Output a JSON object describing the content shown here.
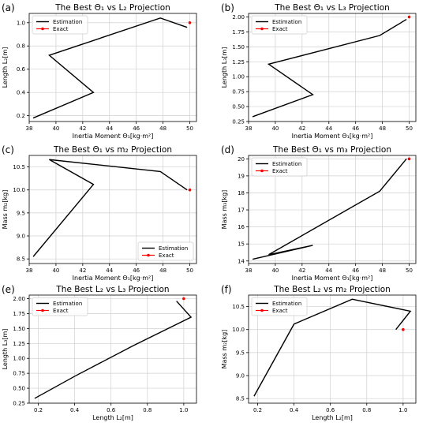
{
  "colors": {
    "estimation": "#000000",
    "exact": "#ff0000",
    "grid": "#d0d0d0"
  },
  "chart_data": [
    {
      "panel": "(a)",
      "type": "line",
      "title": "The Best Θ₁ vs L₂ Projection",
      "xlabel": "Inertia Moment Θ₁[kg·m²]",
      "ylabel": "Length L₂[m]",
      "xlim": [
        38,
        50.5
      ],
      "ylim": [
        0.15,
        1.08
      ],
      "xticks": [
        38,
        40,
        42,
        44,
        46,
        48,
        50
      ],
      "yticks": [
        0.2,
        0.4,
        0.6,
        0.8,
        1.0
      ],
      "xtick_labels": [
        "38",
        "40",
        "42",
        "44",
        "46",
        "48",
        "50"
      ],
      "ytick_labels": [
        "0.2",
        "0.4",
        "0.6",
        "0.8",
        "1.0"
      ],
      "legend": {
        "position": "top-left",
        "entries": [
          "Estimation",
          "Exact"
        ]
      },
      "series": [
        {
          "name": "Estimation",
          "x": [
            38.3,
            42.8,
            39.5,
            47.8,
            49.8
          ],
          "y": [
            0.18,
            0.4,
            0.72,
            1.04,
            0.96
          ]
        },
        {
          "name": "Exact",
          "marker": "point",
          "x": [
            50.0
          ],
          "y": [
            1.0
          ]
        }
      ]
    },
    {
      "panel": "(b)",
      "type": "line",
      "title": "The Best Θ₁ vs L₃ Projection",
      "xlabel": "Inertia Moment Θ₁[kg·m²]",
      "ylabel": "Length L₃[m]",
      "xlim": [
        38,
        50.5
      ],
      "ylim": [
        0.25,
        2.06
      ],
      "xticks": [
        38,
        40,
        42,
        44,
        46,
        48,
        50
      ],
      "yticks": [
        0.25,
        0.5,
        0.75,
        1.0,
        1.25,
        1.5,
        1.75,
        2.0
      ],
      "xtick_labels": [
        "38",
        "40",
        "42",
        "44",
        "46",
        "48",
        "50"
      ],
      "ytick_labels": [
        "0.25",
        "0.50",
        "0.75",
        "1.00",
        "1.25",
        "1.50",
        "1.75",
        "2.00"
      ],
      "legend": {
        "position": "top-left",
        "entries": [
          "Estimation",
          "Exact"
        ]
      },
      "series": [
        {
          "name": "Estimation",
          "x": [
            38.3,
            42.8,
            39.5,
            47.8,
            49.8
          ],
          "y": [
            0.33,
            0.7,
            1.21,
            1.69,
            1.96
          ]
        },
        {
          "name": "Exact",
          "marker": "point",
          "x": [
            50.0
          ],
          "y": [
            2.0
          ]
        }
      ]
    },
    {
      "panel": "(c)",
      "type": "line",
      "title": "The Best Θ₁ vs m₂ Projection",
      "xlabel": "Inertia Moment Θ₁[kg·m²]",
      "ylabel": "Mass m₂[kg]",
      "xlim": [
        38,
        50.5
      ],
      "ylim": [
        8.4,
        10.75
      ],
      "xticks": [
        38,
        40,
        42,
        44,
        46,
        48,
        50
      ],
      "yticks": [
        8.5,
        9.0,
        9.5,
        10.0,
        10.5
      ],
      "xtick_labels": [
        "38",
        "40",
        "42",
        "44",
        "46",
        "48",
        "50"
      ],
      "ytick_labels": [
        "8.5",
        "9.0",
        "9.5",
        "10.0",
        "10.5"
      ],
      "legend": {
        "position": "bottom-right",
        "entries": [
          "Estimation",
          "Exact"
        ]
      },
      "series": [
        {
          "name": "Estimation",
          "x": [
            38.3,
            42.8,
            39.5,
            47.8,
            49.8
          ],
          "y": [
            8.55,
            10.12,
            10.66,
            10.4,
            10.0
          ]
        },
        {
          "name": "Exact",
          "marker": "point",
          "x": [
            50.0
          ],
          "y": [
            10.0
          ]
        }
      ]
    },
    {
      "panel": "(d)",
      "type": "line",
      "title": "The Best Θ₁ vs m₃ Projection",
      "xlabel": "Inertia Moment Θ₁[kg·m²]",
      "ylabel": "Mass m₃[kg]",
      "xlim": [
        38,
        50.5
      ],
      "ylim": [
        13.85,
        20.2
      ],
      "xticks": [
        38,
        40,
        42,
        44,
        46,
        48,
        50
      ],
      "yticks": [
        14,
        15,
        16,
        17,
        18,
        19,
        20
      ],
      "xtick_labels": [
        "38",
        "40",
        "42",
        "44",
        "46",
        "48",
        "50"
      ],
      "ytick_labels": [
        "14",
        "15",
        "16",
        "17",
        "18",
        "19",
        "20"
      ],
      "legend": {
        "position": "top-left",
        "entries": [
          "Estimation",
          "Exact"
        ]
      },
      "series": [
        {
          "name": "Estimation",
          "x": [
            38.3,
            42.8,
            39.5,
            47.8,
            49.8
          ],
          "y": [
            14.1,
            14.92,
            14.37,
            18.1,
            20.0
          ]
        },
        {
          "name": "Exact",
          "marker": "point",
          "x": [
            50.0
          ],
          "y": [
            20.0
          ]
        }
      ]
    },
    {
      "panel": "(e)",
      "type": "line",
      "title": "The Best L₂ vs L₃ Projection",
      "xlabel": "Length L₂[m]",
      "ylabel": "Length L₃[m]",
      "xlim": [
        0.15,
        1.07
      ],
      "ylim": [
        0.25,
        2.06
      ],
      "xticks": [
        0.2,
        0.4,
        0.6,
        0.8,
        1.0
      ],
      "yticks": [
        0.25,
        0.5,
        0.75,
        1.0,
        1.25,
        1.5,
        1.75,
        2.0
      ],
      "xtick_labels": [
        "0.2",
        "0.4",
        "0.6",
        "0.8",
        "1.0"
      ],
      "ytick_labels": [
        "0.25",
        "0.50",
        "0.75",
        "1.00",
        "1.25",
        "1.50",
        "1.75",
        "2.00"
      ],
      "legend": {
        "position": "top-left",
        "entries": [
          "Estimation",
          "Exact"
        ]
      },
      "series": [
        {
          "name": "Estimation",
          "x": [
            0.18,
            0.4,
            0.72,
            1.04,
            0.96
          ],
          "y": [
            0.33,
            0.7,
            1.21,
            1.69,
            1.96
          ]
        },
        {
          "name": "Exact",
          "marker": "point",
          "x": [
            1.0
          ],
          "y": [
            2.0
          ]
        }
      ]
    },
    {
      "panel": "(f)",
      "type": "line",
      "title": "The Best L₂ vs m₂ Projection",
      "xlabel": "Length L₂[m]",
      "ylabel": "Mass m₂[kg]",
      "xlim": [
        0.15,
        1.07
      ],
      "ylim": [
        8.4,
        10.75
      ],
      "xticks": [
        0.2,
        0.4,
        0.6,
        0.8,
        1.0
      ],
      "yticks": [
        8.5,
        9.0,
        9.5,
        10.0,
        10.5
      ],
      "xtick_labels": [
        "0.2",
        "0.4",
        "0.6",
        "0.8",
        "1.0"
      ],
      "ytick_labels": [
        "8.5",
        "9.0",
        "9.5",
        "10.0",
        "10.5"
      ],
      "legend": {
        "position": "top-left",
        "entries": [
          "Estimation",
          "Exact"
        ]
      },
      "series": [
        {
          "name": "Estimation",
          "x": [
            0.18,
            0.4,
            0.72,
            1.04,
            0.96
          ],
          "y": [
            8.55,
            10.12,
            10.66,
            10.4,
            10.0
          ]
        },
        {
          "name": "Exact",
          "marker": "point",
          "x": [
            1.0
          ],
          "y": [
            10.0
          ]
        }
      ]
    }
  ]
}
